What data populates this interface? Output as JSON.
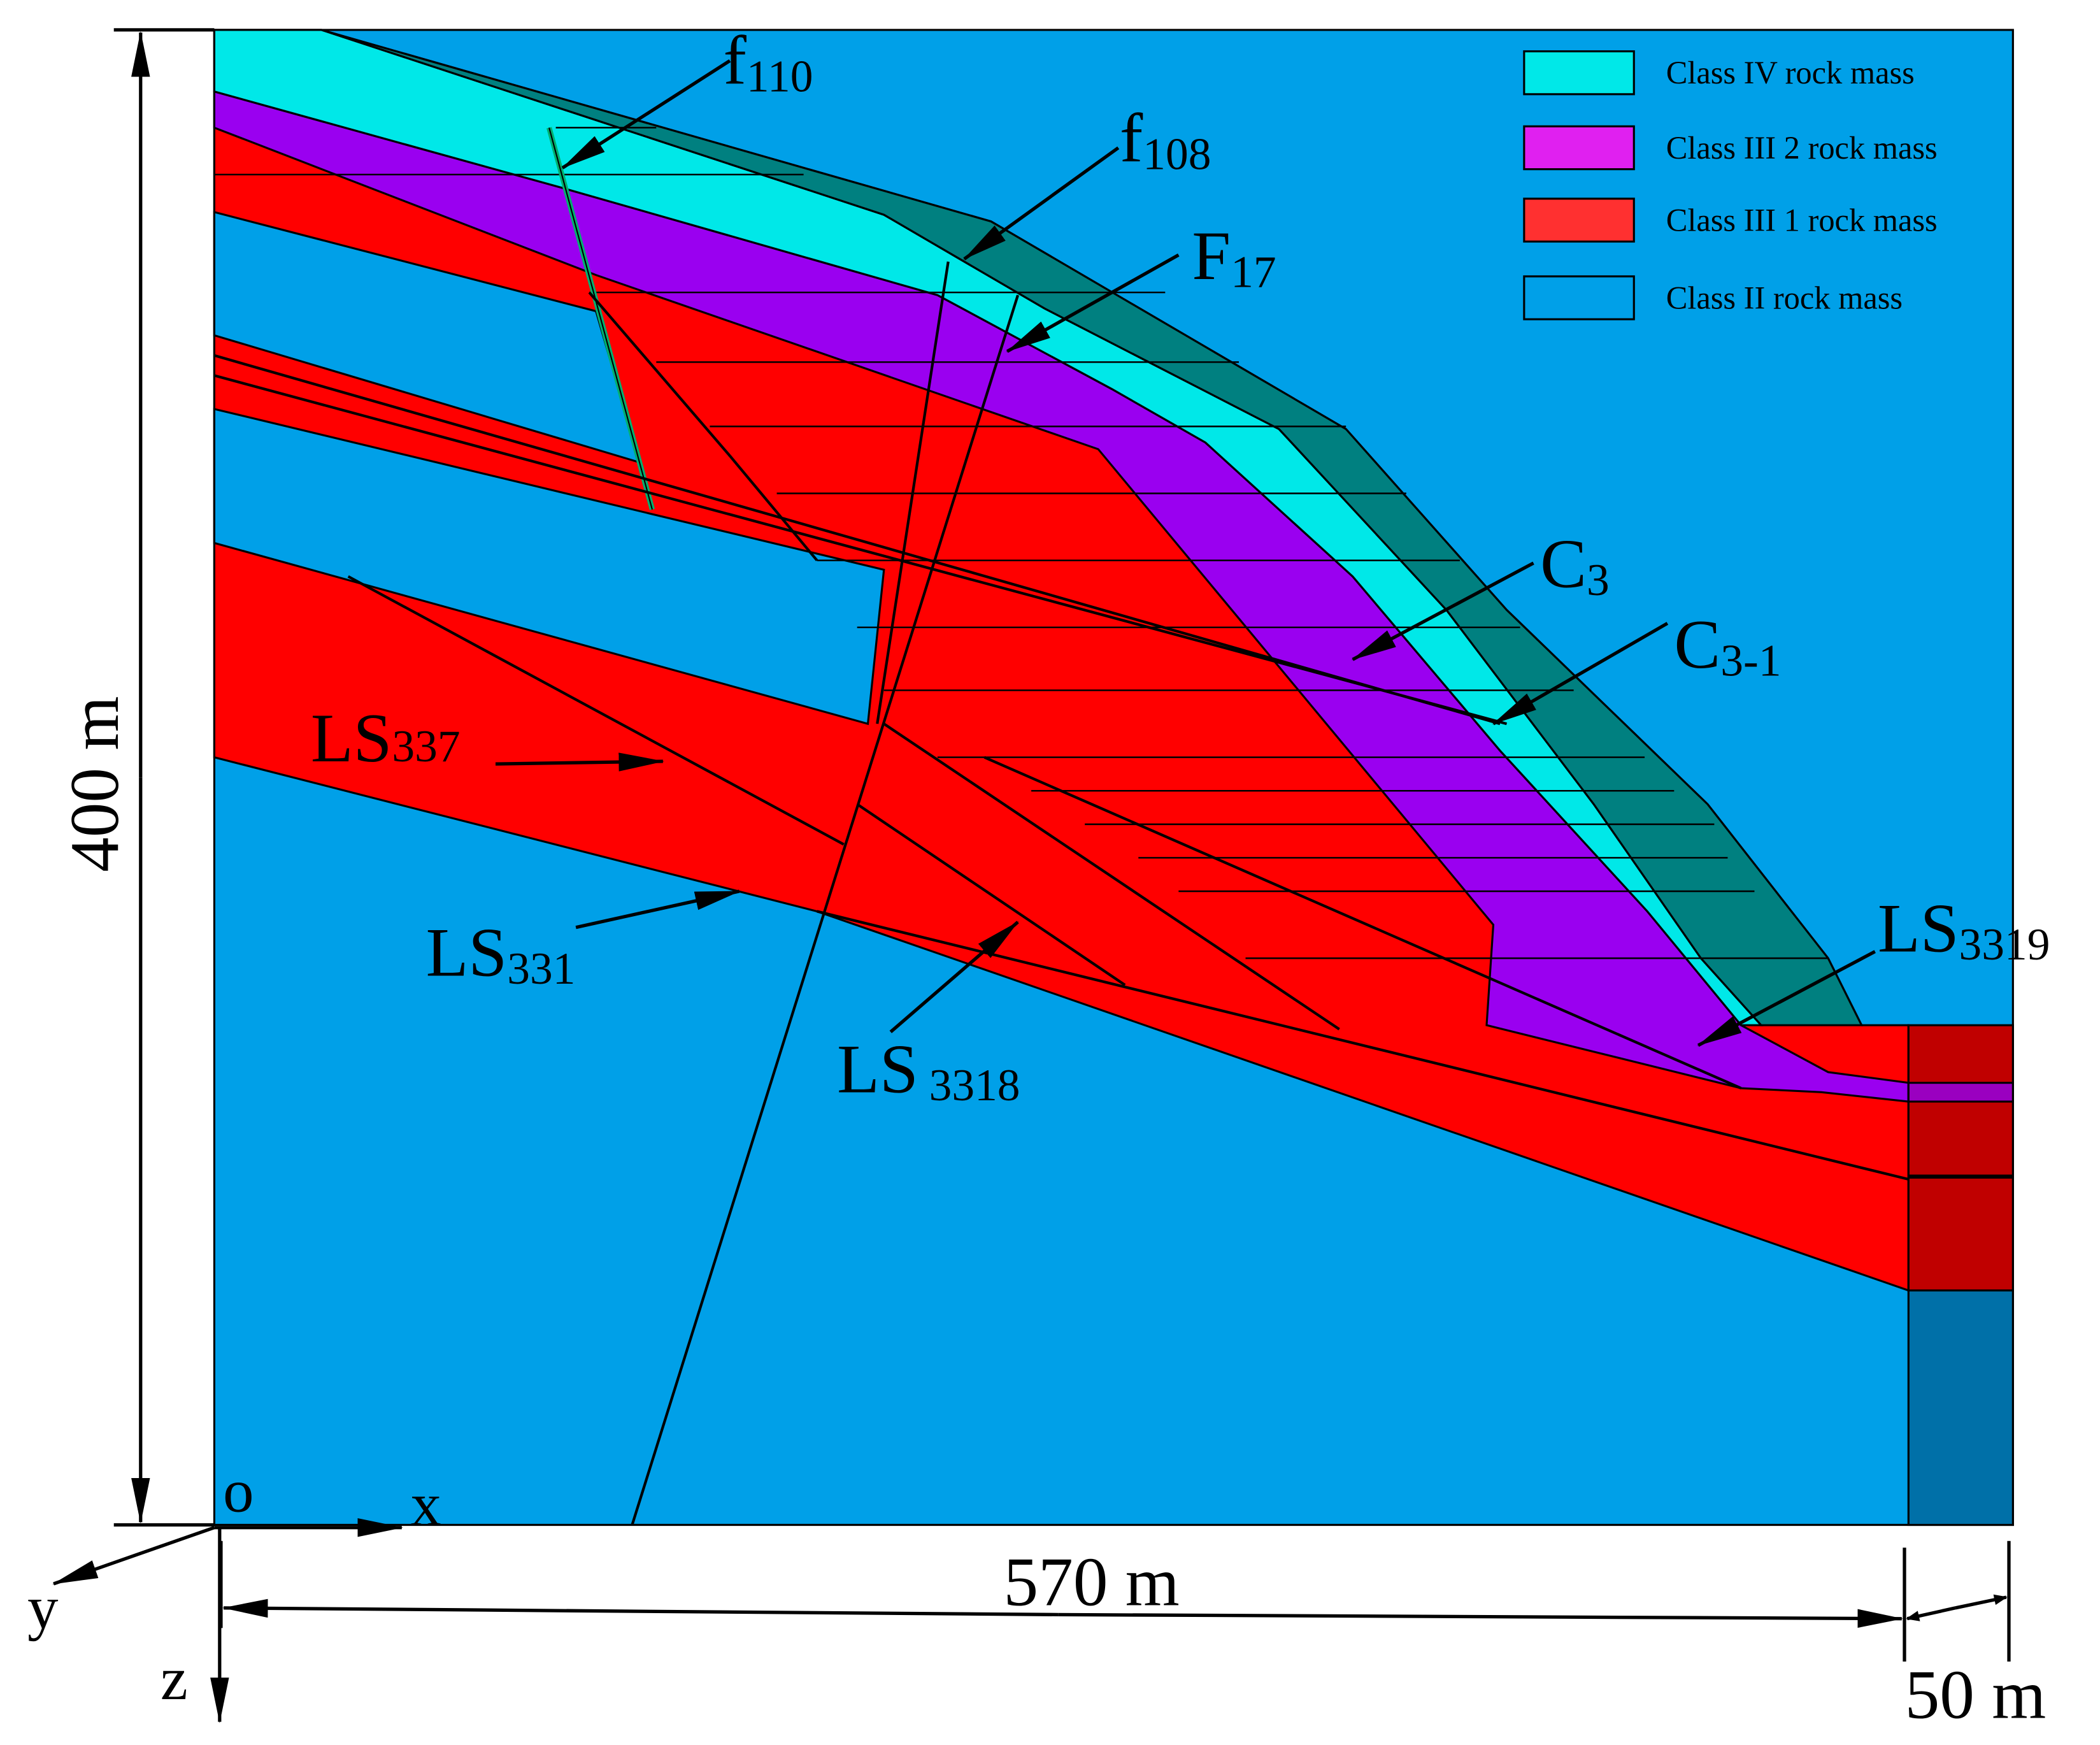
{
  "legend": [
    {
      "label": "Class IV rock mass",
      "color": "#00e8e8"
    },
    {
      "label": "Class III 2 rock mass",
      "color": "#e020f0"
    },
    {
      "label": "Class III 1 rock mass",
      "color": "#ff3030"
    },
    {
      "label": "Class II rock mass",
      "color": "#00a0e8"
    }
  ],
  "labels": [
    {
      "text": "f",
      "sub": "110"
    },
    {
      "text": "f",
      "sub": "108"
    },
    {
      "text": "F",
      "sub": "17"
    },
    {
      "text": "C",
      "sub": "3"
    },
    {
      "text": "C",
      "sub": "3-1"
    },
    {
      "text": "LS",
      "sub": "337"
    },
    {
      "text": "LS",
      "sub": "331"
    },
    {
      "text": "LS",
      "sub": "3318"
    },
    {
      "text": "LS",
      "sub": "3319"
    }
  ],
  "dimensions": {
    "height": "400 m",
    "width": "570 m",
    "depth": "50 m"
  },
  "axes": {
    "origin": "o",
    "x": "x",
    "y": "y",
    "z": "z"
  }
}
